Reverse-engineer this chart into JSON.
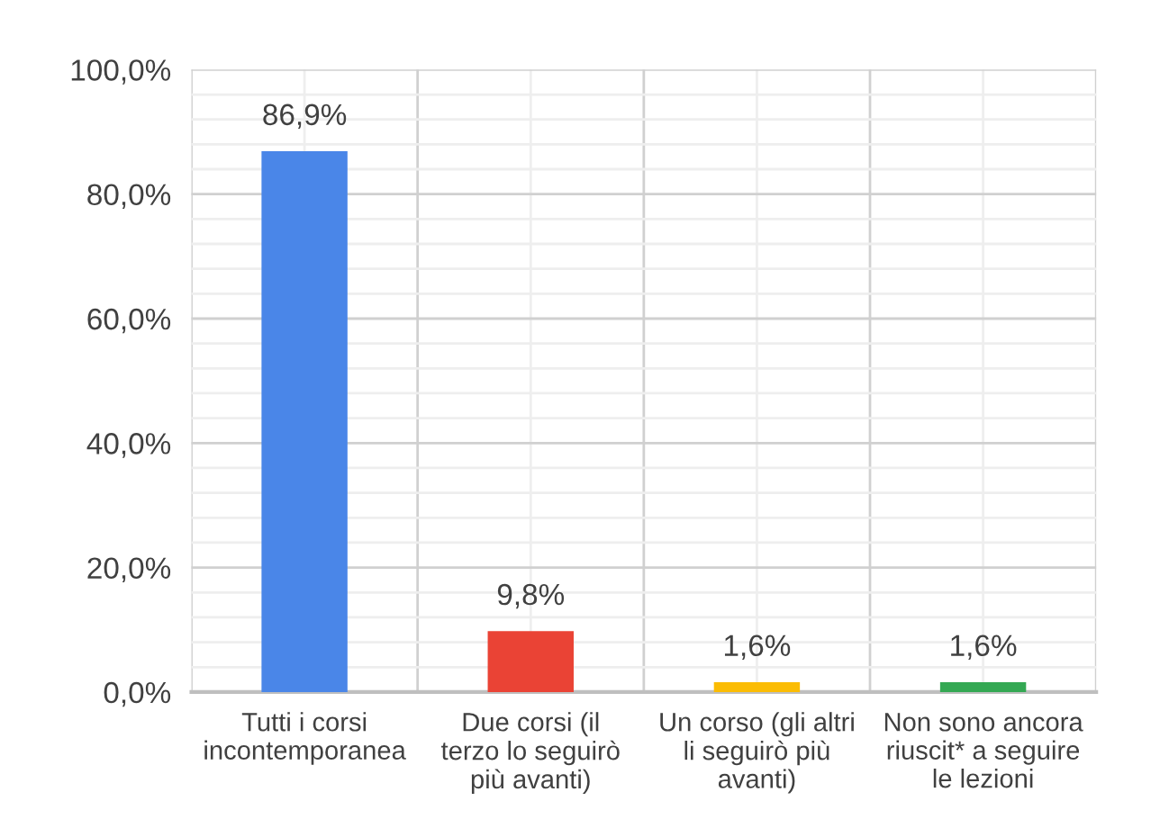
{
  "chart_data": {
    "type": "bar",
    "categories": [
      "Tutti i corsi\nincontemporanea",
      "Due corsi (il\nterzo lo seguirò\npiù avanti)",
      "Un corso (gli altri\nli seguirò più\navanti)",
      "Non sono ancora\nriuscit* a seguire\nle lezioni"
    ],
    "values": [
      86.9,
      9.8,
      1.6,
      1.6
    ],
    "colors": [
      "#4a86e8",
      "#ea4335",
      "#fbbc04",
      "#34a853"
    ],
    "value_labels": [
      "86,9%",
      "9,8%",
      "1,6%",
      "1,6%"
    ],
    "ylim": [
      0,
      100
    ],
    "yticks": [
      {
        "value": 0,
        "label": "0,0%"
      },
      {
        "value": 20,
        "label": "20,0%"
      },
      {
        "value": 40,
        "label": "40,0%"
      },
      {
        "value": 60,
        "label": "60,0%"
      },
      {
        "value": 80,
        "label": "80,0%"
      },
      {
        "value": 100,
        "label": "100,0%"
      }
    ],
    "grid": true,
    "legend": false
  }
}
